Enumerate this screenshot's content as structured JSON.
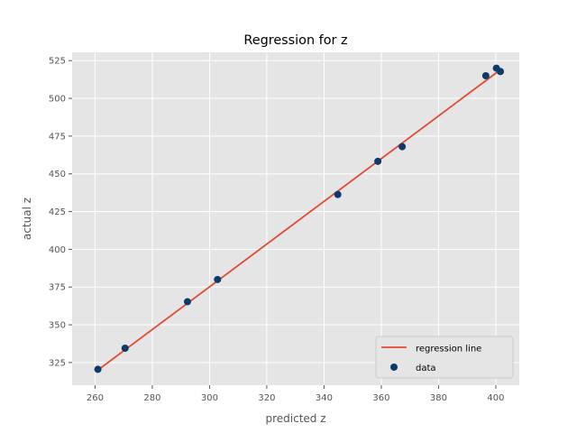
{
  "chart_data": {
    "type": "scatter",
    "title": "Regression for z",
    "xlabel": "predicted z",
    "ylabel": "actual z",
    "xlim": [
      252.0,
      408.2
    ],
    "ylim": [
      310.0,
      530.5
    ],
    "xticks": [
      260,
      280,
      300,
      320,
      340,
      360,
      380,
      400
    ],
    "yticks": [
      325,
      350,
      375,
      400,
      425,
      450,
      475,
      500,
      525
    ],
    "grid": true,
    "legend_position": "lower-right",
    "series": [
      {
        "name": "regression line",
        "kind": "line",
        "color": "#E24A33",
        "x": [
          261.0,
          402.0
        ],
        "y": [
          320.0,
          519.5
        ]
      },
      {
        "name": "data",
        "kind": "scatter",
        "color": "#0B3B6A",
        "x": [
          261.0,
          270.5,
          292.3,
          302.8,
          344.8,
          358.8,
          367.3,
          396.5,
          400.2,
          401.6
        ],
        "y": [
          320.5,
          334.5,
          365.3,
          380.0,
          436.3,
          458.3,
          468.0,
          515.0,
          520.0,
          517.8
        ]
      }
    ]
  },
  "colors": {
    "plot_background": "#E5E5E5",
    "grid": "#FFFFFF",
    "tick_text": "#555555"
  }
}
